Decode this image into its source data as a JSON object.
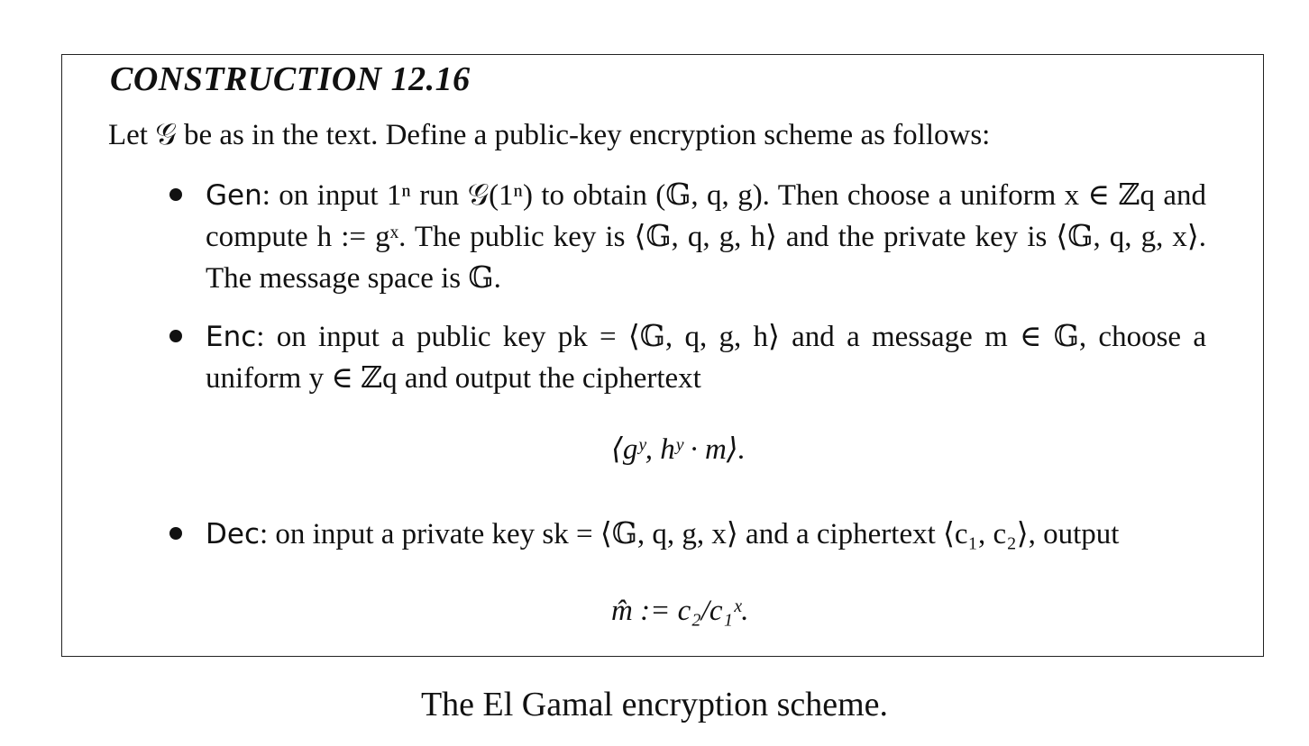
{
  "construction": {
    "title": "CONSTRUCTION 12.16",
    "intro": "Let 𝒢 be as in the text. Define a public-key encryption scheme as follows:"
  },
  "gen": {
    "keyword": "Gen",
    "text": ": on input 1ⁿ run 𝒢(1ⁿ) to obtain (𝔾, q, g). Then choose a uniform x ∈ ℤq and compute h := gˣ. The public key is ⟨𝔾, q, g, h⟩ and the private key is ⟨𝔾, q, g, x⟩. The message space is 𝔾."
  },
  "enc": {
    "keyword": "Enc",
    "text": ": on input a public key pk = ⟨𝔾, q, g, h⟩ and a message m ∈ 𝔾, choose a uniform y ∈ ℤq and output the ciphertext",
    "formula": "⟨gʸ,  hʸ · m⟩."
  },
  "dec": {
    "keyword": "Dec",
    "text": ": on input a private key sk = ⟨𝔾, q, g, x⟩ and a ciphertext ⟨c₁, c₂⟩, output",
    "formula": "m̂ := c₂/c₁ˣ."
  },
  "caption": "The El Gamal encryption scheme."
}
